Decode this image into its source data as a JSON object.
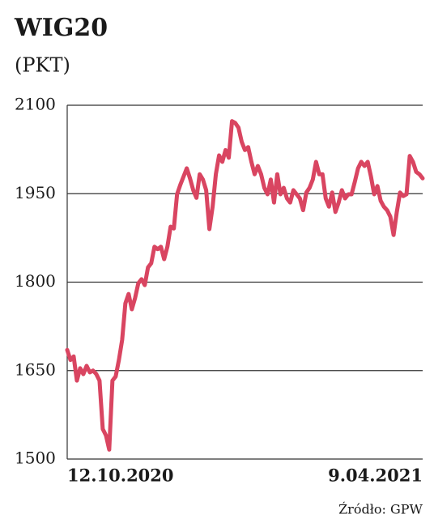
{
  "chart_data": {
    "type": "line",
    "title": "WIG20",
    "subtitle": "(PKT)",
    "source": "Źródło: GPW",
    "categories": [
      "12.10.2020",
      null,
      null,
      null,
      null,
      null,
      null,
      null,
      null,
      null,
      null,
      null,
      null,
      null,
      null,
      null,
      null,
      null,
      null,
      null,
      null,
      null,
      null,
      null,
      null,
      null,
      null,
      null,
      null,
      null,
      null,
      null,
      null,
      null,
      null,
      null,
      null,
      null,
      null,
      null,
      null,
      null,
      null,
      null,
      null,
      null,
      null,
      null,
      null,
      null,
      null,
      null,
      null,
      null,
      null,
      null,
      null,
      null,
      null,
      null,
      null,
      null,
      null,
      null,
      null,
      null,
      null,
      null,
      null,
      null,
      null,
      null,
      null,
      null,
      null,
      null,
      null,
      null,
      null,
      null,
      null,
      null,
      null,
      null,
      null,
      null,
      null,
      null,
      null,
      null,
      null,
      null,
      null,
      null,
      null,
      null,
      null,
      null,
      null,
      null,
      null,
      null,
      null,
      null,
      null,
      null,
      null,
      null,
      null,
      null,
      "9.04.2021"
    ],
    "values": [
      1685,
      1668,
      1674,
      1633,
      1654,
      1644,
      1658,
      1647,
      1650,
      1644,
      1633,
      1551,
      1540,
      1516,
      1633,
      1640,
      1668,
      1702,
      1764,
      1780,
      1754,
      1773,
      1798,
      1805,
      1795,
      1825,
      1832,
      1860,
      1856,
      1860,
      1839,
      1860,
      1894,
      1891,
      1949,
      1965,
      1979,
      1993,
      1976,
      1956,
      1943,
      1983,
      1974,
      1956,
      1890,
      1928,
      1983,
      2015,
      2004,
      2024,
      2011,
      2073,
      2070,
      2062,
      2038,
      2024,
      2029,
      2004,
      1983,
      1997,
      1983,
      1960,
      1949,
      1974,
      1935,
      1983,
      1949,
      1960,
      1942,
      1935,
      1956,
      1949,
      1942,
      1922,
      1952,
      1960,
      1974,
      2004,
      1983,
      1983,
      1942,
      1928,
      1952,
      1919,
      1935,
      1956,
      1942,
      1949,
      1949,
      1970,
      1993,
      2004,
      1997,
      2004,
      1979,
      1949,
      1963,
      1938,
      1928,
      1922,
      1911,
      1880,
      1919,
      1952,
      1946,
      1949,
      2014,
      2004,
      1987,
      1983,
      1976
    ],
    "color": "#d94561",
    "ylim": [
      1500,
      2100
    ],
    "yticks": [
      1500,
      1650,
      1800,
      1950,
      2100
    ],
    "grid": true
  }
}
